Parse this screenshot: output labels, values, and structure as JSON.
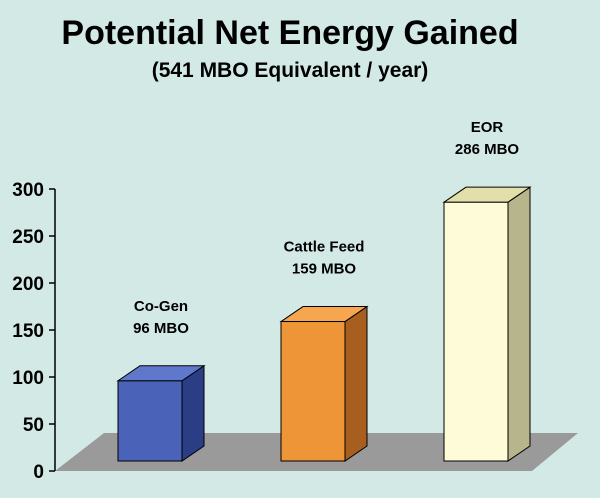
{
  "chart_data": {
    "type": "bar",
    "title": "Potential Net Energy Gained",
    "subtitle": "(541 MBO Equivalent / year)",
    "xlabel": "",
    "ylabel": "",
    "ylim": [
      0,
      300
    ],
    "yticks": [
      "0",
      "50",
      "100",
      "150",
      "200",
      "250",
      "300"
    ],
    "categories": [
      "Co-Gen",
      "Cattle Feed",
      "EOR"
    ],
    "values": [
      96,
      159,
      286
    ],
    "data_labels": [
      "96 MBO",
      "159 MBO",
      "286 MBO"
    ],
    "colors": {
      "front": [
        "#4a63b8",
        "#ee9637",
        "#fdfbd8"
      ],
      "side": [
        "#2a3d85",
        "#a85e1e",
        "#b6b58c"
      ],
      "top": [
        "#5f78cc",
        "#f5a64e",
        "#e3dfaa"
      ],
      "floor": "#9a9a9a",
      "background": "#d3e9e6"
    },
    "grid": false,
    "legend": "none"
  }
}
